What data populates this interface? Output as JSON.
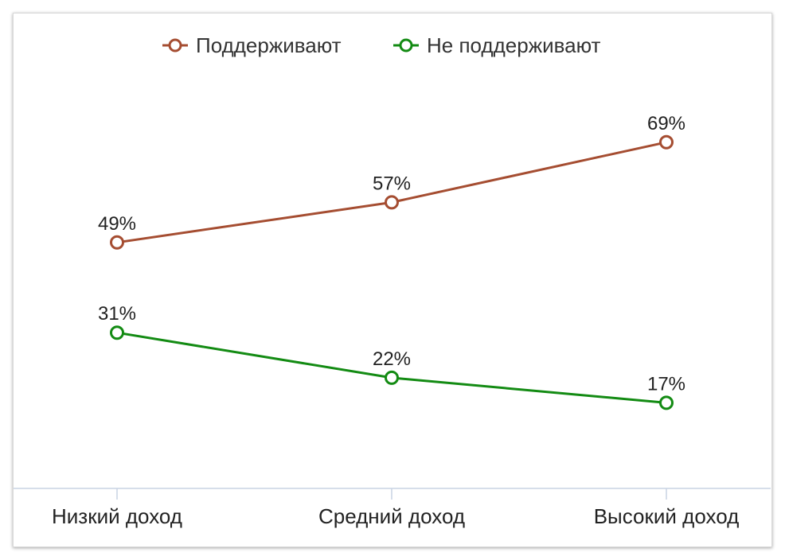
{
  "chart_data": {
    "type": "line",
    "categories": [
      "Низкий доход",
      "Средний доход",
      "Высокий доход"
    ],
    "series": [
      {
        "name": "Поддерживают",
        "values": [
          49,
          57,
          69
        ],
        "labels": [
          "49%",
          "57%",
          "69%"
        ],
        "color": "#a54d31"
      },
      {
        "name": "Не поддерживают",
        "values": [
          31,
          22,
          17
        ],
        "labels": [
          "31%",
          "22%",
          "17%"
        ],
        "color": "#138b13"
      }
    ],
    "ylim": [
      0,
      77
    ],
    "legend_position": "top",
    "grid": false
  }
}
